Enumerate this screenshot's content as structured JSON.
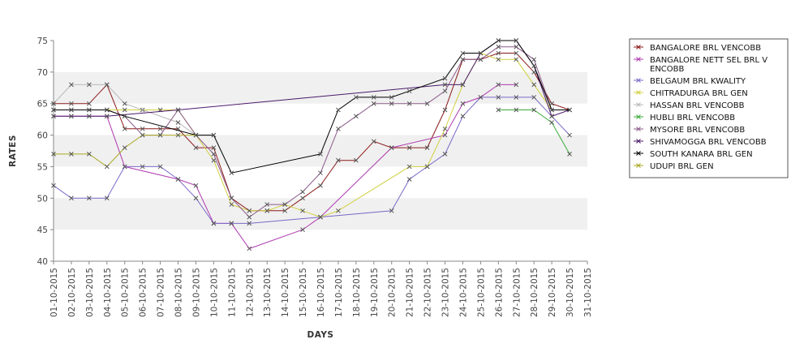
{
  "chart_data": {
    "type": "line",
    "xlabel": "DAYS",
    "ylabel": "RATES",
    "ylim": [
      40,
      75
    ],
    "yticks": [
      40,
      45,
      50,
      55,
      60,
      65,
      70,
      75
    ],
    "grid": "alternating horizontal bands",
    "legend_position": "right",
    "categories": [
      "01-10-2015",
      "02-10-2015",
      "03-10-2015",
      "04-10-2015",
      "05-10-2015",
      "06-10-2015",
      "07-10-2015",
      "08-10-2015",
      "09-10-2015",
      "10-10-2015",
      "11-10-2015",
      "12-10-2015",
      "13-10-2015",
      "14-10-2015",
      "15-10-2015",
      "16-10-2015",
      "17-10-2015",
      "18-10-2015",
      "19-10-2015",
      "20-10-2015",
      "21-10-2015",
      "22-10-2015",
      "23-10-2015",
      "24-10-2015",
      "25-10-2015",
      "26-10-2015",
      "27-10-2015",
      "28-10-2015",
      "29-10-2015",
      "30-10-2015",
      "31-10-2015"
    ],
    "series": [
      {
        "name": "BANGALORE BRL VENCOBB",
        "color": "#8b1a1a",
        "points": [
          [
            0,
            65
          ],
          [
            1,
            65
          ],
          [
            2,
            65
          ],
          [
            3,
            68
          ],
          [
            4,
            61
          ],
          [
            5,
            61
          ],
          [
            6,
            61
          ],
          [
            7,
            61
          ],
          [
            8,
            58
          ],
          [
            9,
            58
          ],
          [
            10,
            50
          ],
          [
            11,
            48
          ],
          [
            12,
            48
          ],
          [
            13,
            48
          ],
          [
            14,
            50
          ],
          [
            15,
            52
          ],
          [
            16,
            56
          ],
          [
            17,
            56
          ],
          [
            18,
            59
          ],
          [
            19,
            58
          ],
          [
            20,
            58
          ],
          [
            21,
            58
          ],
          [
            22,
            64
          ],
          [
            23,
            72
          ],
          [
            24,
            72
          ],
          [
            25,
            73
          ],
          [
            26,
            73
          ],
          [
            27,
            70
          ],
          [
            28,
            65
          ],
          [
            29,
            64
          ]
        ]
      },
      {
        "name": "BANGALORE NETT SEL BRL VENCOBB",
        "color": "#b03ab0",
        "points": [
          [
            0,
            63
          ],
          [
            1,
            63
          ],
          [
            2,
            63
          ],
          [
            3,
            63
          ],
          [
            4,
            55
          ],
          [
            7,
            53
          ],
          [
            8,
            52
          ],
          [
            9,
            46
          ],
          [
            10,
            46
          ],
          [
            11,
            42
          ],
          [
            14,
            45
          ],
          [
            15,
            47
          ],
          [
            19,
            58
          ],
          [
            22,
            60
          ],
          [
            23,
            65
          ],
          [
            24,
            66
          ],
          [
            25,
            68
          ],
          [
            26,
            68
          ]
        ]
      },
      {
        "name": "BELGAUM BRL KWALITY",
        "color": "#7b68c8",
        "points": [
          [
            0,
            52
          ],
          [
            1,
            50
          ],
          [
            2,
            50
          ],
          [
            3,
            50
          ],
          [
            4,
            55
          ],
          [
            5,
            55
          ],
          [
            6,
            55
          ],
          [
            7,
            53
          ],
          [
            8,
            50
          ],
          [
            9,
            46
          ],
          [
            10,
            46
          ],
          [
            11,
            46
          ],
          [
            15,
            47
          ],
          [
            19,
            48
          ],
          [
            20,
            53
          ],
          [
            21,
            55
          ],
          [
            22,
            57
          ],
          [
            23,
            63
          ],
          [
            24,
            66
          ],
          [
            25,
            66
          ],
          [
            26,
            66
          ],
          [
            27,
            66
          ],
          [
            28,
            63
          ],
          [
            29,
            60
          ]
        ]
      },
      {
        "name": "CHITRADURGA BRL GEN",
        "color": "#d0d040",
        "points": [
          [
            0,
            64
          ],
          [
            1,
            64
          ],
          [
            2,
            64
          ],
          [
            3,
            64
          ],
          [
            4,
            64
          ],
          [
            5,
            64
          ],
          [
            6,
            64
          ],
          [
            7,
            64
          ],
          [
            8,
            60
          ],
          [
            9,
            56
          ],
          [
            10,
            49
          ],
          [
            11,
            48
          ],
          [
            12,
            48
          ],
          [
            13,
            49
          ],
          [
            14,
            48
          ],
          [
            15,
            47
          ],
          [
            16,
            48
          ],
          [
            20,
            55
          ],
          [
            21,
            55
          ],
          [
            22,
            61
          ],
          [
            23,
            68
          ],
          [
            24,
            73
          ],
          [
            25,
            72
          ],
          [
            26,
            72
          ],
          [
            27,
            68
          ],
          [
            28,
            64
          ]
        ]
      },
      {
        "name": "HASSAN BRL VENCOBB",
        "color": "#b8b8b8",
        "points": [
          [
            0,
            65
          ],
          [
            1,
            68
          ],
          [
            2,
            68
          ],
          [
            3,
            68
          ],
          [
            4,
            65
          ],
          [
            7,
            62
          ],
          [
            8,
            60
          ],
          [
            9,
            60
          ]
        ]
      },
      {
        "name": "HUBLI BRL VENCOBB",
        "color": "#3cab3c",
        "points": [
          [
            25,
            64
          ],
          [
            26,
            64
          ],
          [
            27,
            64
          ],
          [
            28,
            62
          ],
          [
            29,
            57
          ]
        ]
      },
      {
        "name": "MYSORE BRL VENCOBB",
        "color": "#8a5a8a",
        "points": [
          [
            0,
            64
          ],
          [
            1,
            64
          ],
          [
            2,
            64
          ],
          [
            3,
            64
          ],
          [
            4,
            63
          ],
          [
            5,
            60
          ],
          [
            6,
            60
          ],
          [
            7,
            64
          ],
          [
            8,
            60
          ],
          [
            9,
            57
          ],
          [
            10,
            50
          ],
          [
            11,
            47
          ],
          [
            12,
            49
          ],
          [
            13,
            49
          ],
          [
            14,
            51
          ],
          [
            15,
            54
          ],
          [
            16,
            61
          ],
          [
            17,
            63
          ],
          [
            18,
            65
          ],
          [
            19,
            65
          ],
          [
            20,
            65
          ],
          [
            21,
            65
          ],
          [
            22,
            67
          ],
          [
            23,
            72
          ],
          [
            24,
            72
          ],
          [
            25,
            74
          ],
          [
            26,
            74
          ],
          [
            27,
            72
          ],
          [
            28,
            64
          ]
        ]
      },
      {
        "name": "SHIVAMOGGA BRL VENCOBB",
        "color": "#4a1a6a",
        "points": [
          [
            0,
            63
          ],
          [
            1,
            63
          ],
          [
            2,
            63
          ],
          [
            3,
            63
          ],
          [
            7,
            64
          ],
          [
            22,
            68
          ],
          [
            23,
            68
          ],
          [
            24,
            73
          ],
          [
            25,
            75
          ],
          [
            26,
            75
          ],
          [
            27,
            71
          ],
          [
            28,
            63
          ],
          [
            29,
            64
          ]
        ]
      },
      {
        "name": "SOUTH KANARA BRL GEN",
        "color": "#000000",
        "points": [
          [
            0,
            64
          ],
          [
            1,
            64
          ],
          [
            2,
            64
          ],
          [
            3,
            64
          ],
          [
            4,
            63
          ],
          [
            8,
            60
          ],
          [
            9,
            60
          ],
          [
            10,
            54
          ],
          [
            15,
            57
          ],
          [
            16,
            64
          ],
          [
            17,
            66
          ],
          [
            18,
            66
          ],
          [
            19,
            66
          ],
          [
            20,
            67
          ],
          [
            22,
            69
          ],
          [
            23,
            73
          ],
          [
            24,
            73
          ],
          [
            25,
            75
          ],
          [
            26,
            75
          ],
          [
            27,
            71
          ],
          [
            28,
            64
          ],
          [
            29,
            64
          ]
        ]
      },
      {
        "name": "UDUPI BRL GEN",
        "color": "#a8a820",
        "points": [
          [
            0,
            57
          ],
          [
            1,
            57
          ],
          [
            2,
            57
          ],
          [
            3,
            55
          ],
          [
            4,
            58
          ],
          [
            5,
            60
          ],
          [
            6,
            60
          ],
          [
            7,
            60
          ],
          [
            8,
            60
          ]
        ]
      }
    ]
  }
}
